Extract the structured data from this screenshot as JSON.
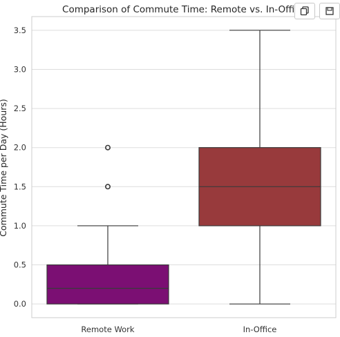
{
  "toolbar": {
    "copy_icon": "copy-icon",
    "save_icon": "save-icon"
  },
  "chart_data": {
    "type": "box",
    "title": "Comparison of Commute Time: Remote vs. In-Office",
    "xlabel": "",
    "ylabel": "Commute Time per Day (Hours)",
    "ylim": [
      -0.175,
      3.675
    ],
    "yticks": [
      "0.0",
      "0.5",
      "1.0",
      "1.5",
      "2.0",
      "2.5",
      "3.0",
      "3.5"
    ],
    "grid": true,
    "categories": [
      "Remote Work",
      "In-Office"
    ],
    "boxes": [
      {
        "category": "Remote Work",
        "whisker_low": 0.0,
        "q1": 0.0,
        "median": 0.2,
        "q3": 0.5,
        "whisker_high": 1.0,
        "outliers": [
          1.5,
          2.0
        ],
        "color": "#7b0f73"
      },
      {
        "category": "In-Office",
        "whisker_low": 0.0,
        "q1": 1.0,
        "median": 1.5,
        "q3": 2.0,
        "whisker_high": 3.5,
        "outliers": [],
        "color": "#983a3c"
      }
    ]
  }
}
